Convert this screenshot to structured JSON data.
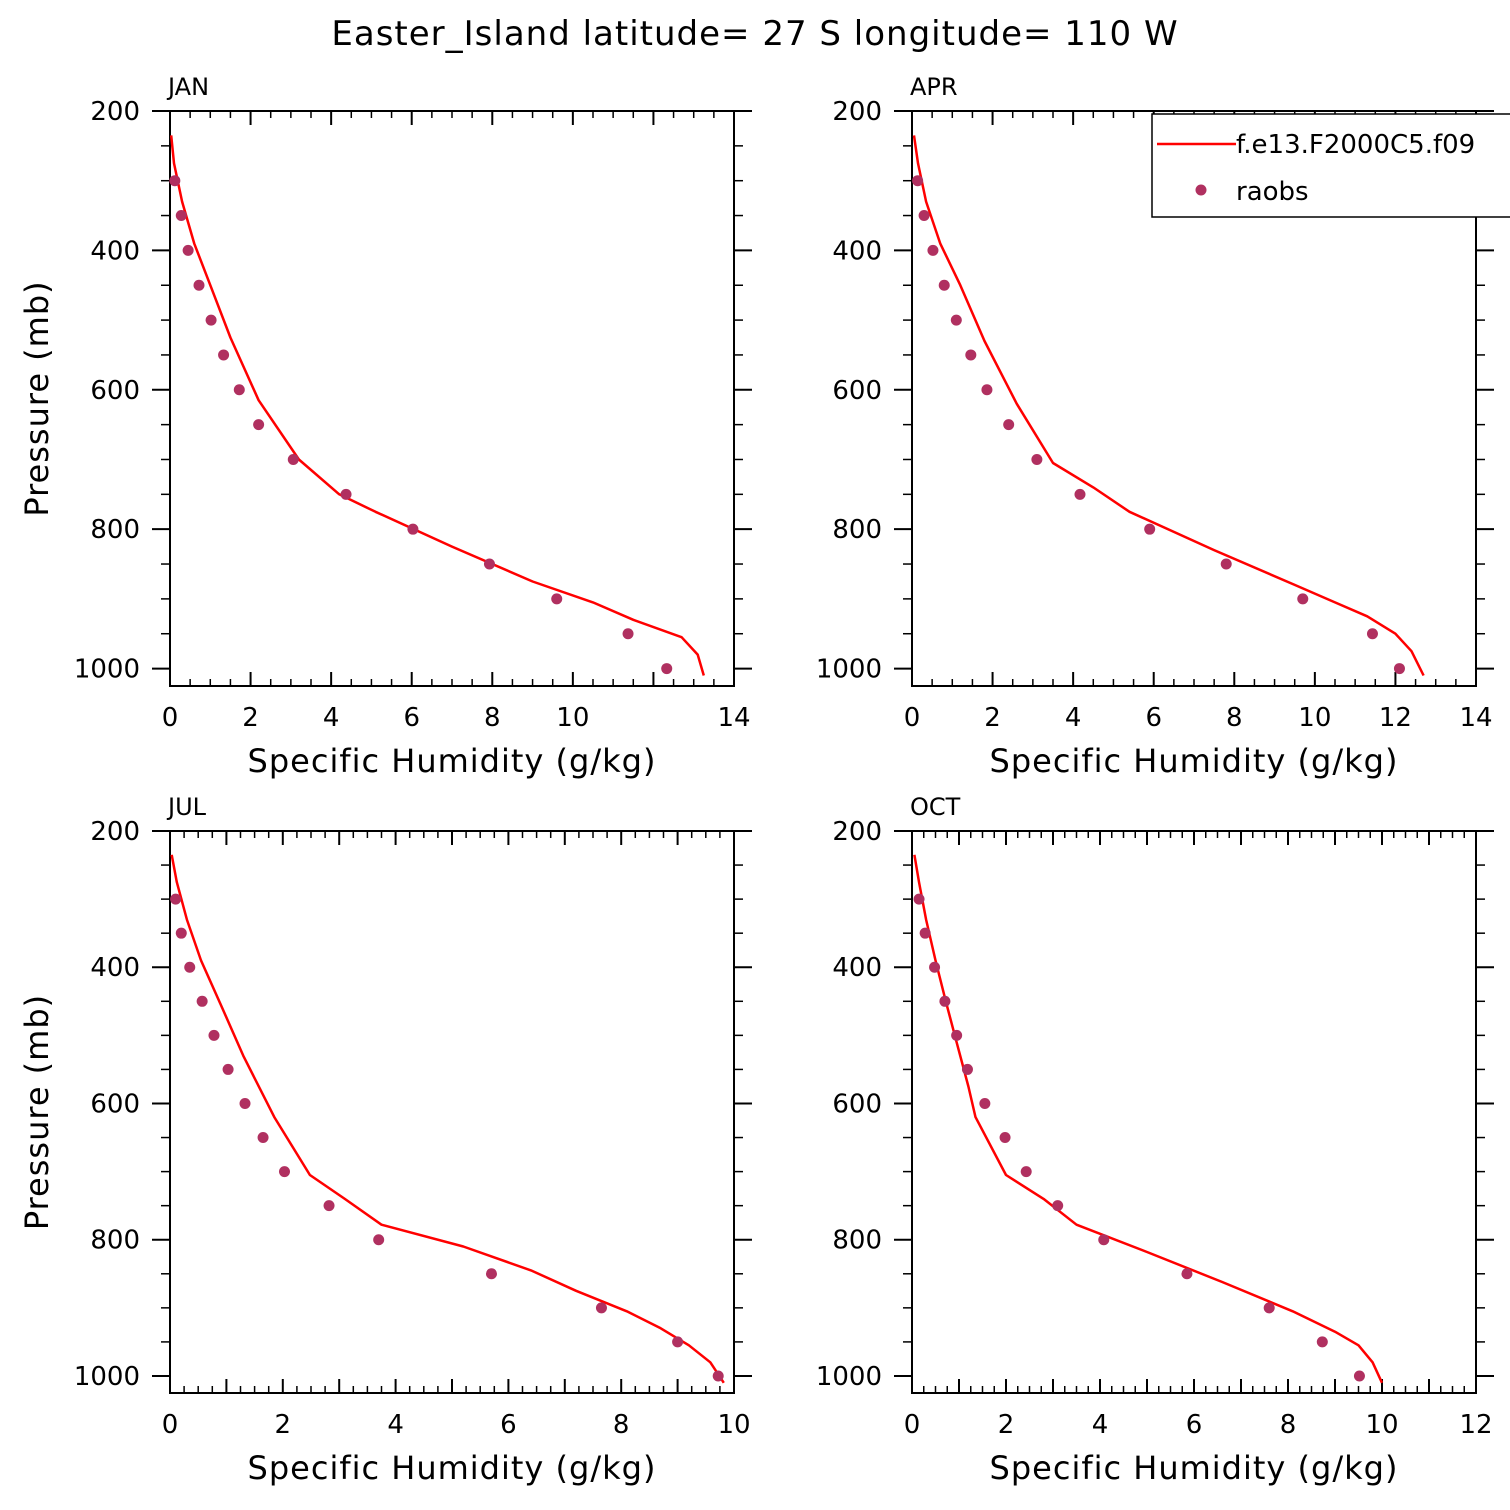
{
  "title": "Easter_Island  latitude= 27 S longitude= 110 W",
  "legend": {
    "entries": [
      {
        "label": "f.e13.F2000C5.f09",
        "kind": "line",
        "color": "#ff0000"
      },
      {
        "label": "raobs",
        "kind": "marker",
        "color": "#b03060"
      }
    ]
  },
  "colors": {
    "model_line": "#ff0000",
    "raobs_marker": "#b03060"
  },
  "chart_data": [
    {
      "type": "line",
      "panel": "JAN",
      "xlabel": "Specific Humidity (g/kg)",
      "ylabel": "Pressure (mb)",
      "xlim": [
        0,
        14
      ],
      "ylim": [
        1025,
        200
      ],
      "y_inverted": true,
      "xticks": [
        0,
        2,
        4,
        6,
        8,
        10,
        14
      ],
      "xtick_labels": [
        "0",
        "2",
        "4",
        "6",
        "8",
        "10",
        "14"
      ],
      "xticks_major": [
        0,
        2,
        4,
        6,
        8,
        10,
        12,
        14
      ],
      "yticks": [
        200,
        400,
        600,
        800,
        1000
      ],
      "series": [
        {
          "name": "f.e13.F2000C5.f09",
          "kind": "line",
          "x": [
            0.03,
            0.1,
            0.3,
            0.6,
            1.0,
            1.5,
            2.2,
            3.2,
            4.2,
            5.1,
            7.0,
            9.0,
            10.5,
            11.5,
            12.7,
            13.1,
            13.25
          ],
          "y": [
            235,
            275,
            330,
            390,
            450,
            525,
            615,
            700,
            750,
            775,
            825,
            875,
            905,
            930,
            955,
            980,
            1010
          ]
        },
        {
          "name": "raobs",
          "kind": "scatter",
          "x": [
            0.12,
            0.28,
            0.45,
            0.72,
            1.02,
            1.33,
            1.72,
            2.2,
            3.06,
            4.37,
            6.03,
            7.93,
            9.6,
            11.37,
            12.33
          ],
          "y": [
            300,
            350,
            400,
            450,
            500,
            550,
            600,
            650,
            700,
            750,
            800,
            850,
            900,
            950,
            1000
          ]
        }
      ]
    },
    {
      "type": "line",
      "panel": "APR",
      "xlabel": "Specific Humidity (g/kg)",
      "ylabel": "",
      "xlim": [
        0,
        14
      ],
      "ylim": [
        1025,
        200
      ],
      "y_inverted": true,
      "xticks": [
        0,
        2,
        4,
        6,
        8,
        10,
        12,
        14
      ],
      "xtick_labels": [
        "0",
        "2",
        "4",
        "6",
        "8",
        "10",
        "12",
        "14"
      ],
      "xticks_major": [
        0,
        2,
        4,
        6,
        8,
        10,
        12,
        14
      ],
      "yticks": [
        200,
        400,
        600,
        800,
        1000
      ],
      "series": [
        {
          "name": "f.e13.F2000C5.f09",
          "kind": "line",
          "x": [
            0.05,
            0.15,
            0.35,
            0.7,
            1.2,
            1.8,
            2.6,
            3.5,
            4.5,
            5.4,
            7.5,
            9.5,
            10.5,
            11.3,
            12.0,
            12.4,
            12.7
          ],
          "y": [
            235,
            275,
            330,
            390,
            450,
            530,
            620,
            705,
            740,
            775,
            830,
            880,
            905,
            925,
            950,
            975,
            1010
          ]
        },
        {
          "name": "raobs",
          "kind": "scatter",
          "x": [
            0.14,
            0.3,
            0.52,
            0.8,
            1.1,
            1.46,
            1.86,
            2.4,
            3.1,
            4.17,
            5.9,
            7.8,
            9.7,
            11.43,
            12.1
          ],
          "y": [
            300,
            350,
            400,
            450,
            500,
            550,
            600,
            650,
            700,
            750,
            800,
            850,
            900,
            950,
            1000
          ]
        }
      ]
    },
    {
      "type": "line",
      "panel": "JUL",
      "xlabel": "Specific Humidity (g/kg)",
      "ylabel": "Pressure (mb)",
      "xlim": [
        0,
        10
      ],
      "ylim": [
        1025,
        200
      ],
      "y_inverted": true,
      "xticks": [
        0,
        2,
        4,
        6,
        8,
        10
      ],
      "xtick_labels": [
        "0",
        "2",
        "4",
        "6",
        "8",
        "10"
      ],
      "xticks_major": [
        0,
        1,
        2,
        3,
        4,
        5,
        6,
        7,
        8,
        9,
        10
      ],
      "yticks": [
        200,
        400,
        600,
        800,
        1000
      ],
      "series": [
        {
          "name": "f.e13.F2000C5.f09",
          "kind": "line",
          "x": [
            0.03,
            0.12,
            0.3,
            0.55,
            0.9,
            1.3,
            1.85,
            2.48,
            3.1,
            3.75,
            5.2,
            6.4,
            7.2,
            8.1,
            8.7,
            9.2,
            9.58,
            9.82
          ],
          "y": [
            235,
            275,
            330,
            390,
            455,
            530,
            620,
            705,
            740,
            778,
            810,
            845,
            875,
            905,
            930,
            955,
            980,
            1010
          ]
        },
        {
          "name": "raobs",
          "kind": "scatter",
          "x": [
            0.1,
            0.2,
            0.35,
            0.57,
            0.78,
            1.03,
            1.33,
            1.65,
            2.03,
            2.82,
            3.7,
            5.7,
            7.65,
            9.0,
            9.72
          ],
          "y": [
            300,
            350,
            400,
            450,
            500,
            550,
            600,
            650,
            700,
            750,
            800,
            850,
            900,
            950,
            1000
          ]
        }
      ]
    },
    {
      "type": "line",
      "panel": "OCT",
      "xlabel": "Specific Humidity (g/kg)",
      "ylabel": "",
      "xlim": [
        0,
        12
      ],
      "ylim": [
        1025,
        200
      ],
      "y_inverted": true,
      "xticks": [
        0,
        2,
        4,
        6,
        8,
        10,
        12
      ],
      "xtick_labels": [
        "0",
        "2",
        "4",
        "6",
        "8",
        "10",
        "12"
      ],
      "xticks_major": [
        0,
        1,
        2,
        3,
        4,
        5,
        6,
        7,
        8,
        9,
        10,
        11,
        12
      ],
      "yticks": [
        200,
        400,
        600,
        800,
        1000
      ],
      "series": [
        {
          "name": "f.e13.F2000C5.f09",
          "kind": "line",
          "x": [
            0.05,
            0.15,
            0.3,
            0.5,
            0.72,
            0.95,
            1.2,
            1.35,
            2.0,
            2.8,
            3.5,
            5.0,
            6.6,
            8.1,
            9.0,
            9.5,
            9.8,
            10.0
          ],
          "y": [
            235,
            275,
            330,
            390,
            450,
            510,
            575,
            620,
            705,
            740,
            778,
            818,
            862,
            905,
            935,
            955,
            980,
            1010
          ]
        },
        {
          "name": "raobs",
          "kind": "scatter",
          "x": [
            0.15,
            0.28,
            0.48,
            0.7,
            0.95,
            1.18,
            1.55,
            1.98,
            2.43,
            3.1,
            4.08,
            5.85,
            7.6,
            8.73,
            9.52
          ],
          "y": [
            300,
            350,
            400,
            450,
            500,
            550,
            600,
            650,
            700,
            750,
            800,
            850,
            900,
            950,
            1000
          ]
        }
      ]
    }
  ]
}
